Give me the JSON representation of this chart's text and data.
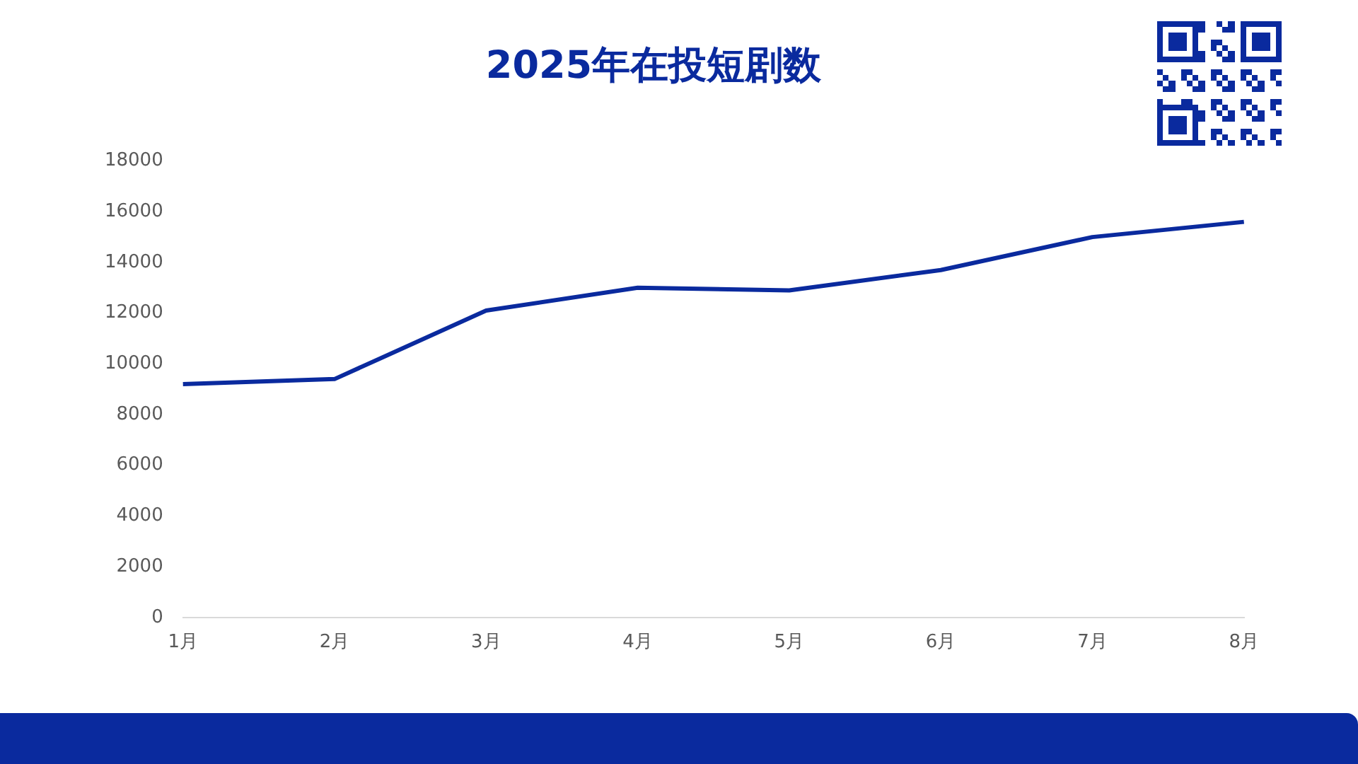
{
  "chart_data": {
    "type": "line",
    "title": "2025年在投短剧数",
    "categories": [
      "1月",
      "2月",
      "3月",
      "4月",
      "5月",
      "6月",
      "7月",
      "8月"
    ],
    "series": [
      {
        "color": "#0a2a9e",
        "values": [
          9200,
          9400,
          12100,
          13000,
          12900,
          13700,
          15000,
          15600
        ]
      }
    ],
    "ylim": [
      0,
      18000
    ],
    "yticks": [
      0,
      2000,
      4000,
      6000,
      8000,
      10000,
      12000,
      14000,
      16000,
      18000
    ],
    "grid": false,
    "legend": false,
    "marker": "none",
    "line_style": "solid"
  }
}
